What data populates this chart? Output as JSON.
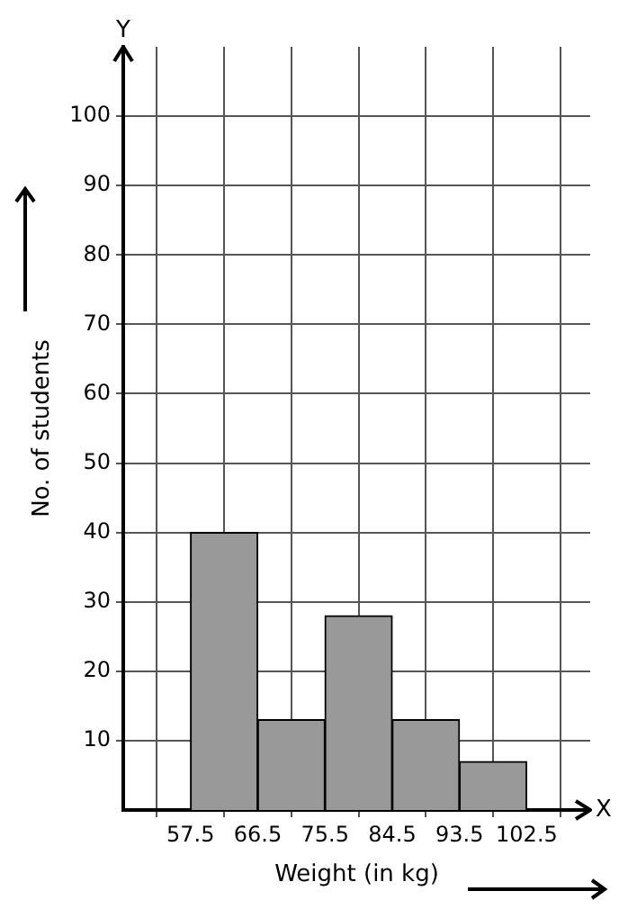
{
  "chart_data": {
    "type": "histogram",
    "xlabel": "Weight (in kg)",
    "ylabel": "No. of students",
    "bins": [
      57.5,
      66.5,
      75.5,
      84.5,
      93.5,
      102.5
    ],
    "values": [
      40,
      13,
      28,
      13,
      7
    ],
    "color": "#999999",
    "xlim": [
      48.5,
      111
    ],
    "xticks": [
      57.5,
      66.5,
      75.5,
      84.5,
      93.5,
      102.5
    ],
    "ylim": [
      0,
      110
    ],
    "yticks": [
      10,
      20,
      30,
      40,
      50,
      60,
      70,
      80,
      90,
      100
    ],
    "grid": true,
    "legend": false,
    "annotations": [
      "X",
      "Y"
    ]
  }
}
